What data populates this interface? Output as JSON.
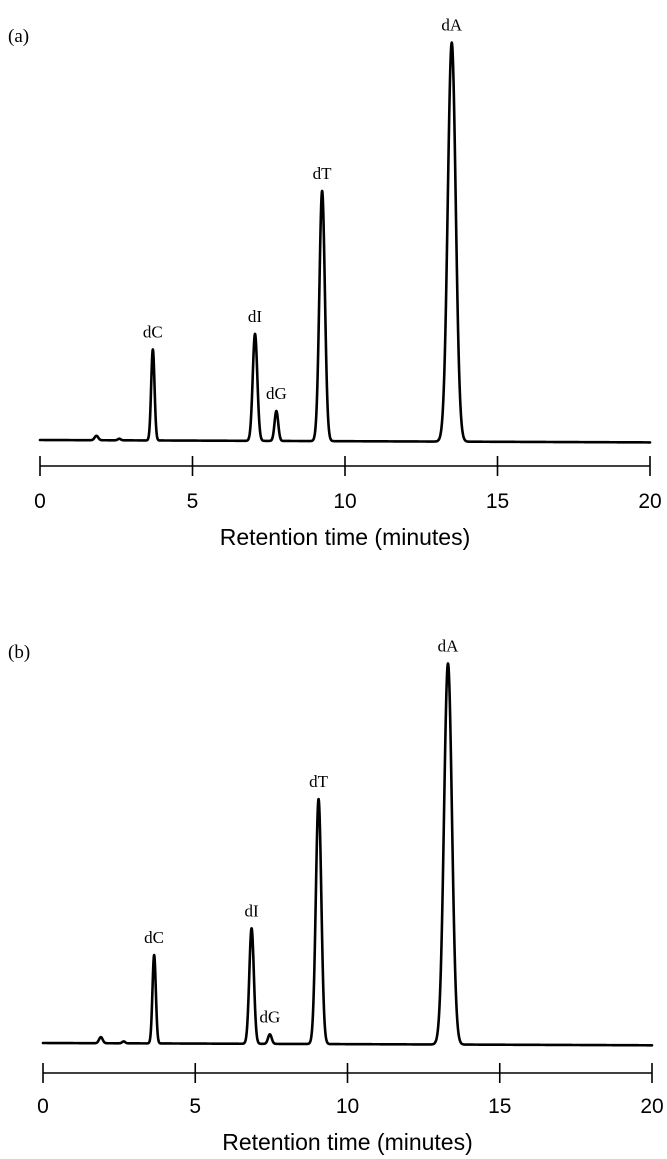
{
  "chart_data": [
    {
      "type": "line",
      "panel_label": "(a)",
      "xlabel": "Retention time (minutes)",
      "ylabel": "",
      "xlim": [
        0,
        20
      ],
      "ylim": [
        0,
        1.0
      ],
      "x_ticks": [
        0,
        5,
        10,
        15,
        20
      ],
      "grid": false,
      "baseline_slope": -0.006,
      "peaks": [
        {
          "label": "",
          "x": 1.85,
          "height": 0.011,
          "width": 0.06
        },
        {
          "label": "",
          "x": 2.6,
          "height": 0.004,
          "width": 0.05
        },
        {
          "label": "dC",
          "x": 3.7,
          "height": 0.228,
          "width": 0.055
        },
        {
          "label": "dI",
          "x": 7.05,
          "height": 0.268,
          "width": 0.075
        },
        {
          "label": "dG",
          "x": 7.75,
          "height": 0.075,
          "width": 0.06
        },
        {
          "label": "dT",
          "x": 9.25,
          "height": 0.627,
          "width": 0.09
        },
        {
          "label": "dA",
          "x": 13.5,
          "height": 1.0,
          "width": 0.13
        }
      ]
    },
    {
      "type": "line",
      "panel_label": "(b)",
      "xlabel": "Retention time (minutes)",
      "ylabel": "",
      "xlim": [
        0,
        20
      ],
      "ylim": [
        0,
        1.0
      ],
      "x_ticks": [
        0,
        5,
        10,
        15,
        20
      ],
      "grid": false,
      "baseline_slope": -0.006,
      "peaks": [
        {
          "label": "",
          "x": 1.9,
          "height": 0.016,
          "width": 0.06
        },
        {
          "label": "",
          "x": 2.65,
          "height": 0.005,
          "width": 0.05
        },
        {
          "label": "dC",
          "x": 3.65,
          "height": 0.232,
          "width": 0.055
        },
        {
          "label": "dI",
          "x": 6.85,
          "height": 0.303,
          "width": 0.075
        },
        {
          "label": "dG",
          "x": 7.45,
          "height": 0.025,
          "width": 0.06
        },
        {
          "label": "dT",
          "x": 9.05,
          "height": 0.643,
          "width": 0.09
        },
        {
          "label": "dA",
          "x": 13.3,
          "height": 1.0,
          "width": 0.13
        }
      ]
    }
  ]
}
